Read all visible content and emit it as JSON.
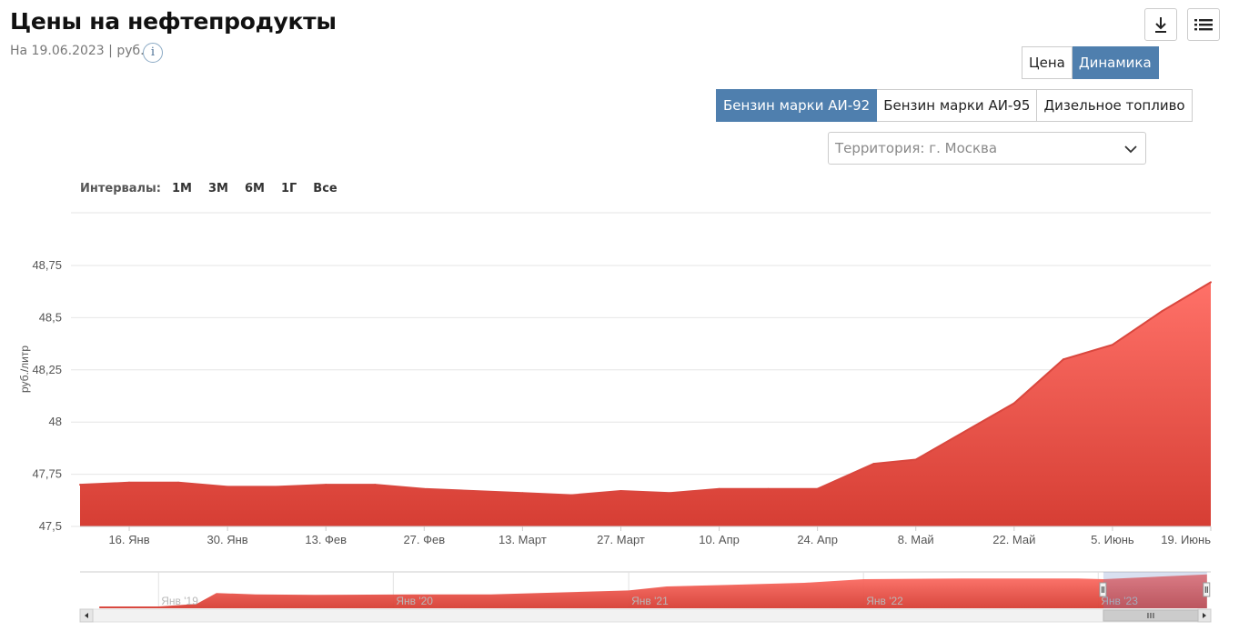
{
  "header": {
    "title": "Цены на нефтепродукты",
    "subtitle": "На 19.06.2023 | руб.",
    "info_label": "i"
  },
  "view_toggle": [
    {
      "label": "Цена",
      "active": false
    },
    {
      "label": "Динамика",
      "active": true
    }
  ],
  "fuel_tabs": [
    {
      "label": "Бензин марки АИ-92",
      "active": true
    },
    {
      "label": "Бензин марки АИ-95",
      "active": false
    },
    {
      "label": "Дизельное топливо",
      "active": false
    }
  ],
  "territory_select": {
    "value": "Территория: г. Москва"
  },
  "intervals": {
    "label": "Интервалы:",
    "options": [
      "1М",
      "3М",
      "6М",
      "1Г",
      "Все"
    ]
  },
  "icons": {
    "download": "download-icon",
    "menu": "list-menu-icon",
    "dropdown": "chevron-down-icon"
  },
  "colors": {
    "accent": "#4f7fae",
    "series_top": "#ff7168",
    "series_bottom": "#d63e34",
    "series_line": "#d9473e"
  },
  "chart_data": {
    "type": "area",
    "ylabel": "руб./литр",
    "ylim": [
      47.5,
      48.75
    ],
    "yticks": [
      {
        "value": 47.5,
        "label": "47,5"
      },
      {
        "value": 47.75,
        "label": "47,75"
      },
      {
        "value": 48,
        "label": "48"
      },
      {
        "value": 48.25,
        "label": "48,25"
      },
      {
        "value": 48.5,
        "label": "48,5"
      },
      {
        "value": 48.75,
        "label": "48,75"
      }
    ],
    "x_range": [
      "2023-01-09",
      "2023-06-19"
    ],
    "xticks": [
      {
        "date": "2023-01-16",
        "label": "16. Янв"
      },
      {
        "date": "2023-01-30",
        "label": "30. Янв"
      },
      {
        "date": "2023-02-13",
        "label": "13. Фев"
      },
      {
        "date": "2023-02-27",
        "label": "27. Фев"
      },
      {
        "date": "2023-03-13",
        "label": "13. Март"
      },
      {
        "date": "2023-03-27",
        "label": "27. Март"
      },
      {
        "date": "2023-04-10",
        "label": "10. Апр"
      },
      {
        "date": "2023-04-24",
        "label": "24. Апр"
      },
      {
        "date": "2023-05-08",
        "label": "8. Май"
      },
      {
        "date": "2023-05-22",
        "label": "22. Май"
      },
      {
        "date": "2023-06-05",
        "label": "5. Июнь"
      },
      {
        "date": "2023-06-19",
        "label": "19. Июнь"
      }
    ],
    "series": [
      {
        "points": [
          {
            "x": "2023-01-09",
            "y": 47.7
          },
          {
            "x": "2023-01-16",
            "y": 47.71
          },
          {
            "x": "2023-01-23",
            "y": 47.71
          },
          {
            "x": "2023-01-30",
            "y": 47.69
          },
          {
            "x": "2023-02-06",
            "y": 47.69
          },
          {
            "x": "2023-02-13",
            "y": 47.7
          },
          {
            "x": "2023-02-20",
            "y": 47.7
          },
          {
            "x": "2023-02-27",
            "y": 47.68
          },
          {
            "x": "2023-03-06",
            "y": 47.67
          },
          {
            "x": "2023-03-13",
            "y": 47.66
          },
          {
            "x": "2023-03-20",
            "y": 47.65
          },
          {
            "x": "2023-03-27",
            "y": 47.67
          },
          {
            "x": "2023-04-03",
            "y": 47.66
          },
          {
            "x": "2023-04-10",
            "y": 47.68
          },
          {
            "x": "2023-04-17",
            "y": 47.68
          },
          {
            "x": "2023-04-24",
            "y": 47.68
          },
          {
            "x": "2023-05-02",
            "y": 47.8
          },
          {
            "x": "2023-05-08",
            "y": 47.82
          },
          {
            "x": "2023-05-22",
            "y": 48.09
          },
          {
            "x": "2023-05-29",
            "y": 48.3
          },
          {
            "x": "2023-06-05",
            "y": 48.37
          },
          {
            "x": "2023-06-12",
            "y": 48.53
          },
          {
            "x": "2023-06-19",
            "y": 48.67
          }
        ]
      }
    ],
    "navigator": {
      "labels": [
        "Янв '19",
        "Янв '20",
        "Янв '21",
        "Янв '22",
        "Янв '23"
      ],
      "points": [
        {
          "x": "2018-10-01",
          "y": 0.05
        },
        {
          "x": "2019-01-01",
          "y": 0.05
        },
        {
          "x": "2019-03-01",
          "y": 0.12
        },
        {
          "x": "2019-04-01",
          "y": 0.42
        },
        {
          "x": "2019-06-01",
          "y": 0.38
        },
        {
          "x": "2019-09-01",
          "y": 0.37
        },
        {
          "x": "2020-02-01",
          "y": 0.38
        },
        {
          "x": "2020-06-01",
          "y": 0.38
        },
        {
          "x": "2021-01-01",
          "y": 0.49
        },
        {
          "x": "2021-03-01",
          "y": 0.6
        },
        {
          "x": "2021-06-01",
          "y": 0.64
        },
        {
          "x": "2021-10-01",
          "y": 0.7
        },
        {
          "x": "2022-01-01",
          "y": 0.8
        },
        {
          "x": "2022-06-01",
          "y": 0.82
        },
        {
          "x": "2022-12-01",
          "y": 0.82
        },
        {
          "x": "2023-01-09",
          "y": 0.8
        },
        {
          "x": "2023-06-19",
          "y": 0.93
        }
      ]
    }
  }
}
